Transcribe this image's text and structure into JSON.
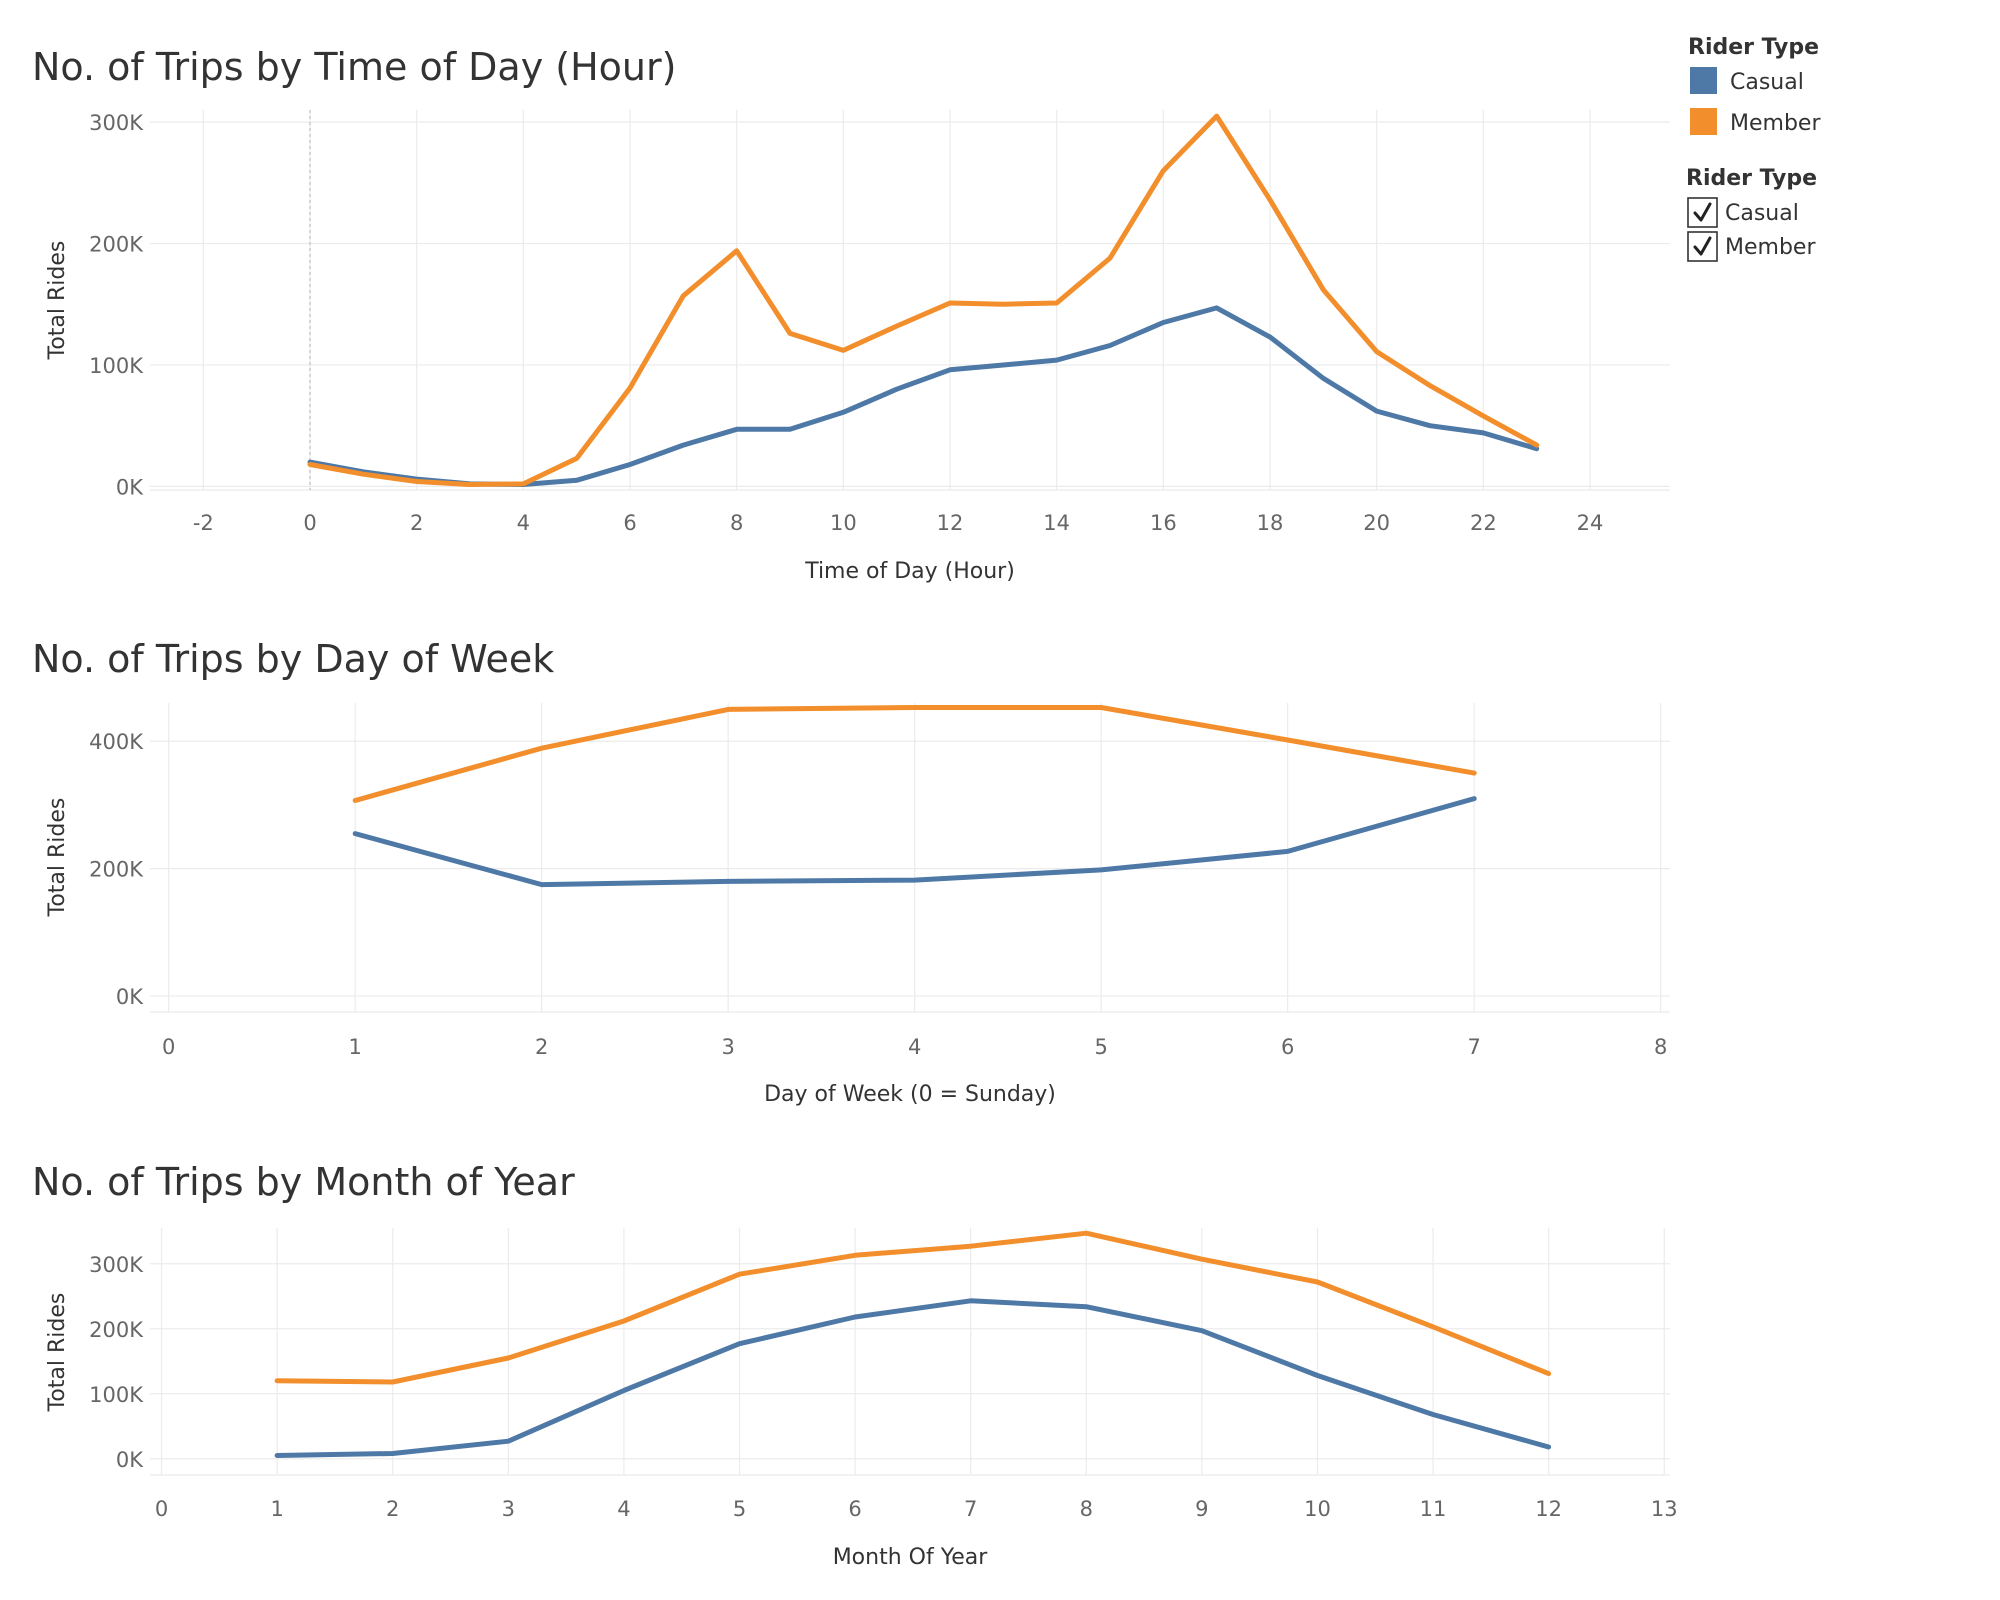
{
  "legend": {
    "color_title": "Rider Type",
    "color_items": [
      {
        "label": "Casual",
        "color": "#4e79a7"
      },
      {
        "label": "Member",
        "color": "#f28e2b"
      }
    ],
    "filter_title": "Rider Type",
    "filter_items": [
      {
        "label": "Casual",
        "checked": true
      },
      {
        "label": "Member",
        "checked": true
      }
    ]
  },
  "chart_data": [
    {
      "type": "line",
      "title": "No. of Trips by Time of Day (Hour)",
      "xlabel": "Time of Day (Hour)",
      "ylabel": "Total Rides",
      "xlim": [
        -3,
        25.5
      ],
      "ylim": [
        -3000,
        310000
      ],
      "xticks": [
        -2,
        0,
        2,
        4,
        6,
        8,
        10,
        12,
        14,
        16,
        18,
        20,
        22,
        24
      ],
      "yticks": [
        0,
        100000,
        200000,
        300000
      ],
      "ytick_labels": [
        "0K",
        "100K",
        "200K",
        "300K"
      ],
      "x": [
        0,
        1,
        2,
        3,
        4,
        5,
        6,
        7,
        8,
        9,
        10,
        11,
        12,
        13,
        14,
        15,
        16,
        17,
        18,
        19,
        20,
        21,
        22,
        23
      ],
      "reference_line_x": 0,
      "series": [
        {
          "name": "Casual",
          "color": "#4e79a7",
          "values": [
            20000,
            12000,
            6000,
            2000,
            1500,
            5000,
            18000,
            34000,
            47000,
            47000,
            61000,
            80000,
            96000,
            100000,
            104000,
            116000,
            135000,
            147000,
            123000,
            89000,
            62000,
            50000,
            44000,
            31000
          ]
        },
        {
          "name": "Member",
          "color": "#f28e2b",
          "values": [
            18000,
            10000,
            4000,
            1500,
            2000,
            23000,
            81000,
            157000,
            194000,
            126000,
            112000,
            132000,
            151000,
            150000,
            151000,
            188000,
            260000,
            305000,
            236000,
            162000,
            111000,
            83000,
            58000,
            34000
          ]
        }
      ]
    },
    {
      "type": "line",
      "title": "No. of Trips by Day of Week",
      "xlabel": "Day of Week (0 = Sunday)",
      "ylabel": "Total Rides",
      "xlim": [
        -0.1,
        8.05
      ],
      "ylim": [
        -25000,
        460000
      ],
      "xticks": [
        0,
        1,
        2,
        3,
        4,
        5,
        6,
        7,
        8
      ],
      "yticks": [
        0,
        200000,
        400000
      ],
      "ytick_labels": [
        "0K",
        "200K",
        "400K"
      ],
      "x": [
        1,
        2,
        3,
        4,
        5,
        6,
        7
      ],
      "series": [
        {
          "name": "Casual",
          "color": "#4e79a7",
          "values": [
            255000,
            175000,
            180000,
            182000,
            198000,
            227000,
            310000
          ]
        },
        {
          "name": "Member",
          "color": "#f28e2b",
          "values": [
            307000,
            389000,
            450000,
            453000,
            453000,
            402000,
            350000
          ]
        }
      ]
    },
    {
      "type": "line",
      "title": "No. of Trips by Month of Year",
      "xlabel": "Month Of Year",
      "ylabel": "Total Rides",
      "xlim": [
        -0.1,
        13.05
      ],
      "ylim": [
        -25000,
        355000
      ],
      "xticks": [
        0,
        1,
        2,
        3,
        4,
        5,
        6,
        7,
        8,
        9,
        10,
        11,
        12,
        13
      ],
      "yticks": [
        0,
        100000,
        200000,
        300000
      ],
      "ytick_labels": [
        "0K",
        "100K",
        "200K",
        "300K"
      ],
      "x": [
        1,
        2,
        3,
        4,
        5,
        6,
        7,
        8,
        9,
        10,
        11,
        12
      ],
      "series": [
        {
          "name": "Casual",
          "color": "#4e79a7",
          "values": [
            5000,
            8000,
            27000,
            105000,
            177000,
            218000,
            243000,
            234000,
            197000,
            128000,
            68000,
            18000
          ]
        },
        {
          "name": "Member",
          "color": "#f28e2b",
          "values": [
            120000,
            118000,
            155000,
            212000,
            284000,
            313000,
            327000,
            347000,
            307000,
            272000,
            203000,
            131000
          ]
        }
      ]
    }
  ]
}
